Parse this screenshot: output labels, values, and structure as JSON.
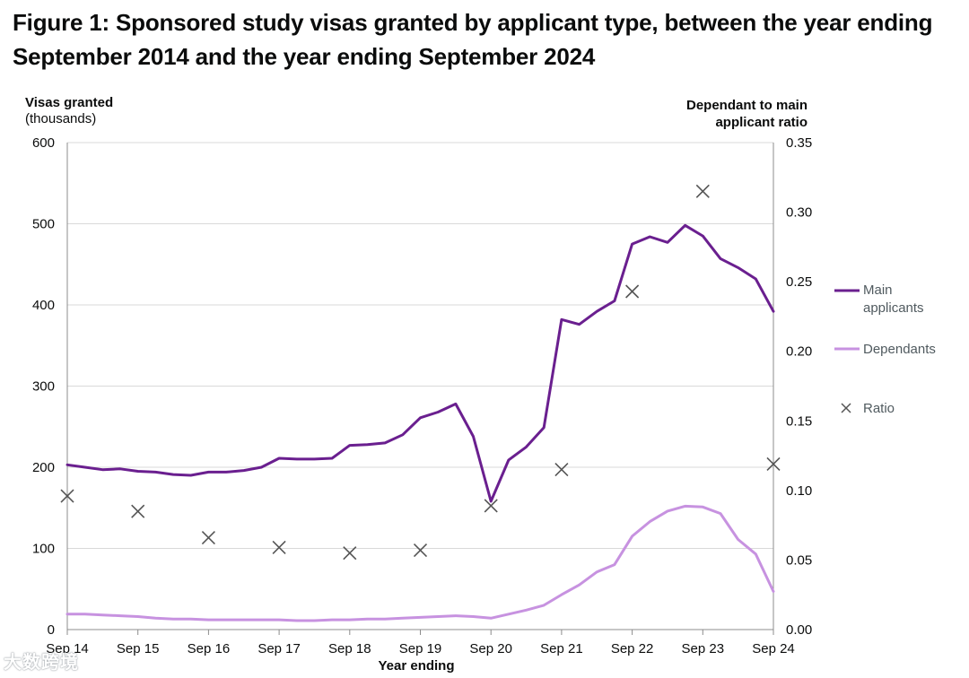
{
  "title_line1": "Figure 1: Sponsored study visas granted by applicant type, between the year ending",
  "title_line2": "September 2014 and the year ending September 2024",
  "watermark": "大数跨境",
  "chart_data": {
    "type": "line",
    "title": "Figure 1: Sponsored study visas granted by applicant type, between the year ending September 2014 and the year ending September 2024",
    "xlabel": "Year ending",
    "ylabel_line1": "Visas granted",
    "ylabel_line2": "(thousands)",
    "y2label_line1": "Dependant to main",
    "y2label_line2": "applicant ratio",
    "ylim": [
      0,
      600
    ],
    "y2lim": [
      0,
      0.35
    ],
    "yticks": [
      "0",
      "100",
      "200",
      "300",
      "400",
      "500",
      "600"
    ],
    "y2ticks": [
      "0.00",
      "0.05",
      "0.10",
      "0.15",
      "0.20",
      "0.25",
      "0.30",
      "0.35"
    ],
    "x_tick_labels": [
      "Sep 14",
      "Sep 15",
      "Sep 16",
      "Sep 17",
      "Sep 18",
      "Sep 19",
      "Sep 20",
      "Sep 21",
      "Sep 22",
      "Sep 23",
      "Sep 24"
    ],
    "colors": {
      "main": "#6a1f8f",
      "dependants": "#c792e0",
      "ratio": "#555555",
      "grid": "#d9d9d9"
    },
    "series": [
      {
        "name": "Main applicants",
        "axis": "left",
        "values": [
          203,
          200,
          197,
          198,
          195,
          194,
          191,
          190,
          194,
          194,
          196,
          200,
          211,
          210,
          210,
          211,
          227,
          228,
          230,
          240,
          261,
          268,
          278,
          238,
          158,
          209,
          225,
          249,
          382,
          376,
          392,
          405,
          475,
          484,
          477,
          498,
          485,
          457,
          446,
          432,
          392
        ]
      },
      {
        "name": "Dependants",
        "axis": "left",
        "values": [
          19,
          19,
          18,
          17,
          16,
          14,
          13,
          13,
          12,
          12,
          12,
          12,
          12,
          11,
          11,
          12,
          12,
          13,
          13,
          14,
          15,
          16,
          17,
          16,
          14,
          19,
          24,
          30,
          43,
          55,
          71,
          80,
          115,
          133,
          146,
          152,
          151,
          143,
          111,
          93,
          47
        ]
      },
      {
        "name": "Ratio",
        "axis": "right",
        "marker": "x",
        "points": [
          {
            "x": 0,
            "y": 0.096
          },
          {
            "x": 1,
            "y": 0.085
          },
          {
            "x": 2,
            "y": 0.066
          },
          {
            "x": 3,
            "y": 0.059
          },
          {
            "x": 4,
            "y": 0.055
          },
          {
            "x": 5,
            "y": 0.057
          },
          {
            "x": 6,
            "y": 0.089
          },
          {
            "x": 7,
            "y": 0.115
          },
          {
            "x": 8,
            "y": 0.243
          },
          {
            "x": 9,
            "y": 0.315
          },
          {
            "x": 10,
            "y": 0.119
          }
        ]
      }
    ],
    "legend": [
      "Main applicants",
      "Dependants",
      "Ratio"
    ],
    "legend_main_line1": "Main",
    "legend_main_line2": "applicants",
    "legend_position": "right"
  }
}
